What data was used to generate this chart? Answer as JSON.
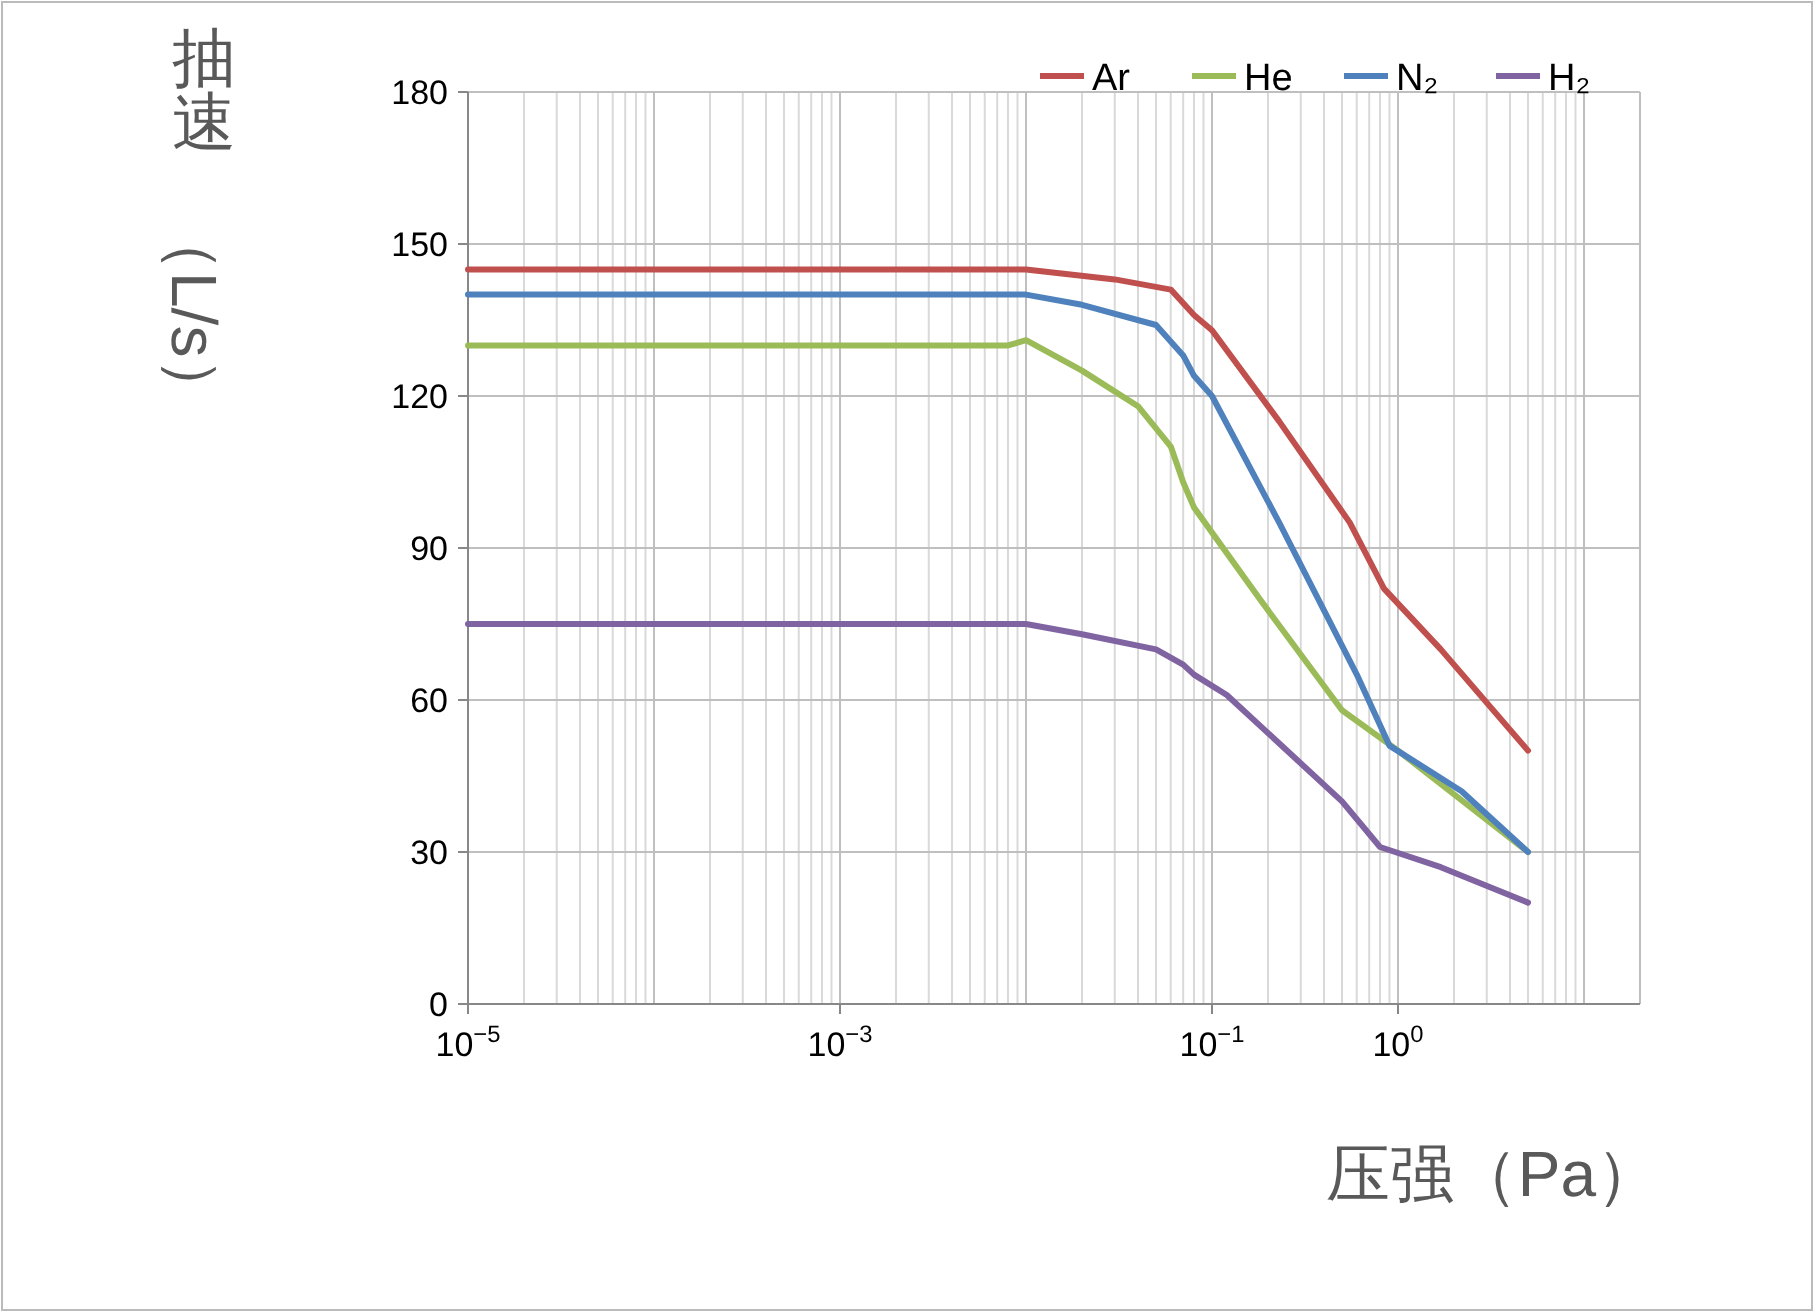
{
  "chart_data": {
    "type": "line",
    "xlabel": "压强（Pa）",
    "ylabel": "抽速（L/s）",
    "log": "x",
    "grid": true,
    "legend": "top right",
    "line_style": "solid",
    "marker": "none",
    "xlim": [
      1e-05,
      20
    ],
    "xticks": [
      {
        "value": 1e-05,
        "label": "10$^{−5}$"
      },
      {
        "value": 0.001,
        "label": "10$^{−3}$"
      },
      {
        "value": 0.1,
        "label": "10$^{−1}$"
      },
      {
        "value": 1,
        "label": "10$^{0}$"
      }
    ],
    "ylim": [
      0,
      180
    ],
    "yticks": [
      0,
      30,
      60,
      90,
      120,
      150,
      180
    ],
    "series": [
      {
        "name": "Ar",
        "color": "#c0504d",
        "x": [
          1e-05,
          0.01,
          0.03,
          0.06,
          0.08,
          0.1,
          0.23,
          0.55,
          0.84,
          1.7,
          5
        ],
        "values": [
          145,
          145,
          143,
          141,
          136,
          133,
          115,
          95,
          82,
          70,
          50
        ]
      },
      {
        "name": "He",
        "color": "#9bbb59",
        "x": [
          1e-05,
          0.008,
          0.01,
          0.02,
          0.04,
          0.06,
          0.07,
          0.08,
          0.18,
          0.5,
          1,
          5
        ],
        "values": [
          130,
          130,
          131,
          125,
          118,
          110,
          103,
          98,
          80,
          58,
          50,
          30
        ]
      },
      {
        "name": "N₂",
        "color": "#4f81bd",
        "x": [
          1e-05,
          0.01,
          0.02,
          0.05,
          0.07,
          0.08,
          0.1,
          0.23,
          0.6,
          0.9,
          2.2,
          5
        ],
        "values": [
          140,
          140,
          138,
          134,
          128,
          124,
          120,
          95,
          65,
          51,
          42,
          30
        ]
      },
      {
        "name": "H₂",
        "color": "#8064a2",
        "x": [
          1e-05,
          0.01,
          0.02,
          0.05,
          0.07,
          0.08,
          0.12,
          0.5,
          0.8,
          1.7,
          5
        ],
        "values": [
          75,
          75,
          73,
          70,
          67,
          65,
          61,
          40,
          31,
          27,
          20
        ]
      }
    ]
  }
}
